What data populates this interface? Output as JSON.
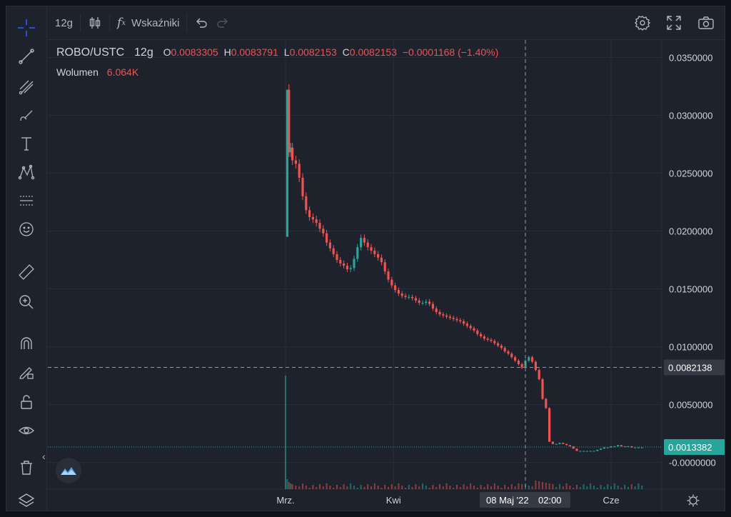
{
  "toolbar": {
    "interval": "12g",
    "indicators_label": "Wskaźniki"
  },
  "legend": {
    "symbol": "ROBO/USTC",
    "interval": "12g",
    "o_label": "O",
    "o_value": "0.0083305",
    "h_label": "H",
    "h_value": "0.0083791",
    "l_label": "L",
    "l_value": "0.0082153",
    "c_label": "C",
    "c_value": "0.0082153",
    "change": "−0.0001168 (−1.40%)",
    "volume_label": "Wolumen",
    "volume_value": "6.064K"
  },
  "crosshair": {
    "price_label": "0.0082138",
    "time_label": "08 Maj '22",
    "time_label2": "02:00"
  },
  "last_price": "0.0013382",
  "colors": {
    "up": "#26a69a",
    "down": "#ef5350",
    "background": "#1e222d",
    "grid": "#2a2e39",
    "last_price_bg": "#26a69a"
  },
  "icons": {
    "left_toolbar": [
      "crosshair-icon",
      "trend-line-icon",
      "fib-icon",
      "brush-icon",
      "text-icon",
      "pattern-icon",
      "forecast-icon",
      "emoji-icon",
      "ruler-icon",
      "zoom-in-icon",
      "magnet-icon",
      "lock-drawing-icon",
      "unlock-icon",
      "eye-icon",
      "trash-icon",
      "layers-icon"
    ],
    "top_right": [
      "gear-icon",
      "fullscreen-icon",
      "camera-icon"
    ]
  },
  "chart_data": {
    "type": "candlestick",
    "y_axis_ticks": [
      "0.0350000",
      "0.0300000",
      "0.0250000",
      "0.0200000",
      "0.0150000",
      "0.0100000",
      "0.0050000",
      "-0.0000000"
    ],
    "x_axis_ticks": [
      "Mrz.",
      "Kwi",
      "Cze"
    ],
    "ylim": [
      -0.0023,
      0.0365
    ],
    "grid": true,
    "series": [
      {
        "name": "ROBO/USTC",
        "points": [
          [
            0,
            0.0195
          ],
          [
            1,
            0.0322
          ],
          [
            2,
            0.0268
          ],
          [
            3,
            0.0272
          ],
          [
            4,
            0.0261
          ],
          [
            6,
            0.0258
          ],
          [
            8,
            0.0246
          ],
          [
            10,
            0.023
          ],
          [
            12,
            0.0218
          ],
          [
            14,
            0.0212
          ],
          [
            16,
            0.021
          ],
          [
            18,
            0.0207
          ],
          [
            20,
            0.0202
          ],
          [
            22,
            0.0198
          ],
          [
            24,
            0.019
          ],
          [
            26,
            0.0185
          ],
          [
            28,
            0.018
          ],
          [
            30,
            0.0175
          ],
          [
            32,
            0.0172
          ],
          [
            34,
            0.017
          ],
          [
            36,
            0.0167
          ],
          [
            38,
            0.0168
          ],
          [
            40,
            0.0176
          ],
          [
            42,
            0.0186
          ],
          [
            44,
            0.0194
          ],
          [
            46,
            0.019
          ],
          [
            48,
            0.0186
          ],
          [
            50,
            0.0183
          ],
          [
            52,
            0.018
          ],
          [
            54,
            0.0177
          ],
          [
            56,
            0.0173
          ],
          [
            58,
            0.0165
          ],
          [
            60,
            0.0158
          ],
          [
            62,
            0.0153
          ],
          [
            64,
            0.0149
          ],
          [
            66,
            0.0146
          ],
          [
            68,
            0.0144
          ],
          [
            70,
            0.0143
          ],
          [
            72,
            0.0143
          ],
          [
            74,
            0.0142
          ],
          [
            76,
            0.014
          ],
          [
            78,
            0.0138
          ],
          [
            80,
            0.0138
          ],
          [
            82,
            0.0139
          ],
          [
            84,
            0.0137
          ],
          [
            86,
            0.0133
          ],
          [
            88,
            0.013
          ],
          [
            90,
            0.0128
          ],
          [
            92,
            0.0127
          ],
          [
            94,
            0.0126
          ],
          [
            96,
            0.0125
          ],
          [
            98,
            0.0124
          ],
          [
            100,
            0.0123
          ],
          [
            102,
            0.0122
          ],
          [
            104,
            0.012
          ],
          [
            106,
            0.0118
          ],
          [
            108,
            0.0116
          ],
          [
            110,
            0.0114
          ],
          [
            112,
            0.0111
          ],
          [
            114,
            0.0109
          ],
          [
            116,
            0.0107
          ],
          [
            118,
            0.0106
          ],
          [
            120,
            0.0105
          ],
          [
            122,
            0.0103
          ],
          [
            124,
            0.0101
          ],
          [
            126,
            0.0099
          ],
          [
            128,
            0.0096
          ],
          [
            130,
            0.0094
          ],
          [
            132,
            0.0091
          ],
          [
            134,
            0.0088
          ],
          [
            136,
            0.0085
          ],
          [
            138,
            0.0082
          ],
          [
            140,
            0.0088
          ],
          [
            142,
            0.0091
          ],
          [
            144,
            0.0087
          ],
          [
            146,
            0.008
          ],
          [
            148,
            0.0072
          ],
          [
            150,
            0.0055
          ],
          [
            152,
            0.0047
          ],
          [
            154,
            0.0018
          ],
          [
            156,
            0.0016
          ],
          [
            158,
            0.0016
          ],
          [
            160,
            0.0017
          ],
          [
            162,
            0.0016
          ],
          [
            164,
            0.0015
          ],
          [
            166,
            0.0014
          ],
          [
            168,
            0.0012
          ],
          [
            170,
            0.001
          ],
          [
            172,
            0.001
          ],
          [
            174,
            0.001
          ],
          [
            176,
            0.001
          ],
          [
            178,
            0.001
          ],
          [
            180,
            0.001
          ],
          [
            182,
            0.0011
          ],
          [
            184,
            0.0012
          ],
          [
            186,
            0.0013
          ],
          [
            188,
            0.0013
          ],
          [
            190,
            0.0014
          ],
          [
            192,
            0.0014
          ],
          [
            194,
            0.0015
          ],
          [
            196,
            0.0014
          ],
          [
            198,
            0.0014
          ],
          [
            200,
            0.0014
          ],
          [
            202,
            0.0013
          ],
          [
            204,
            0.0013
          ],
          [
            206,
            0.0013
          ],
          [
            208,
            0.0013
          ]
        ]
      }
    ]
  }
}
